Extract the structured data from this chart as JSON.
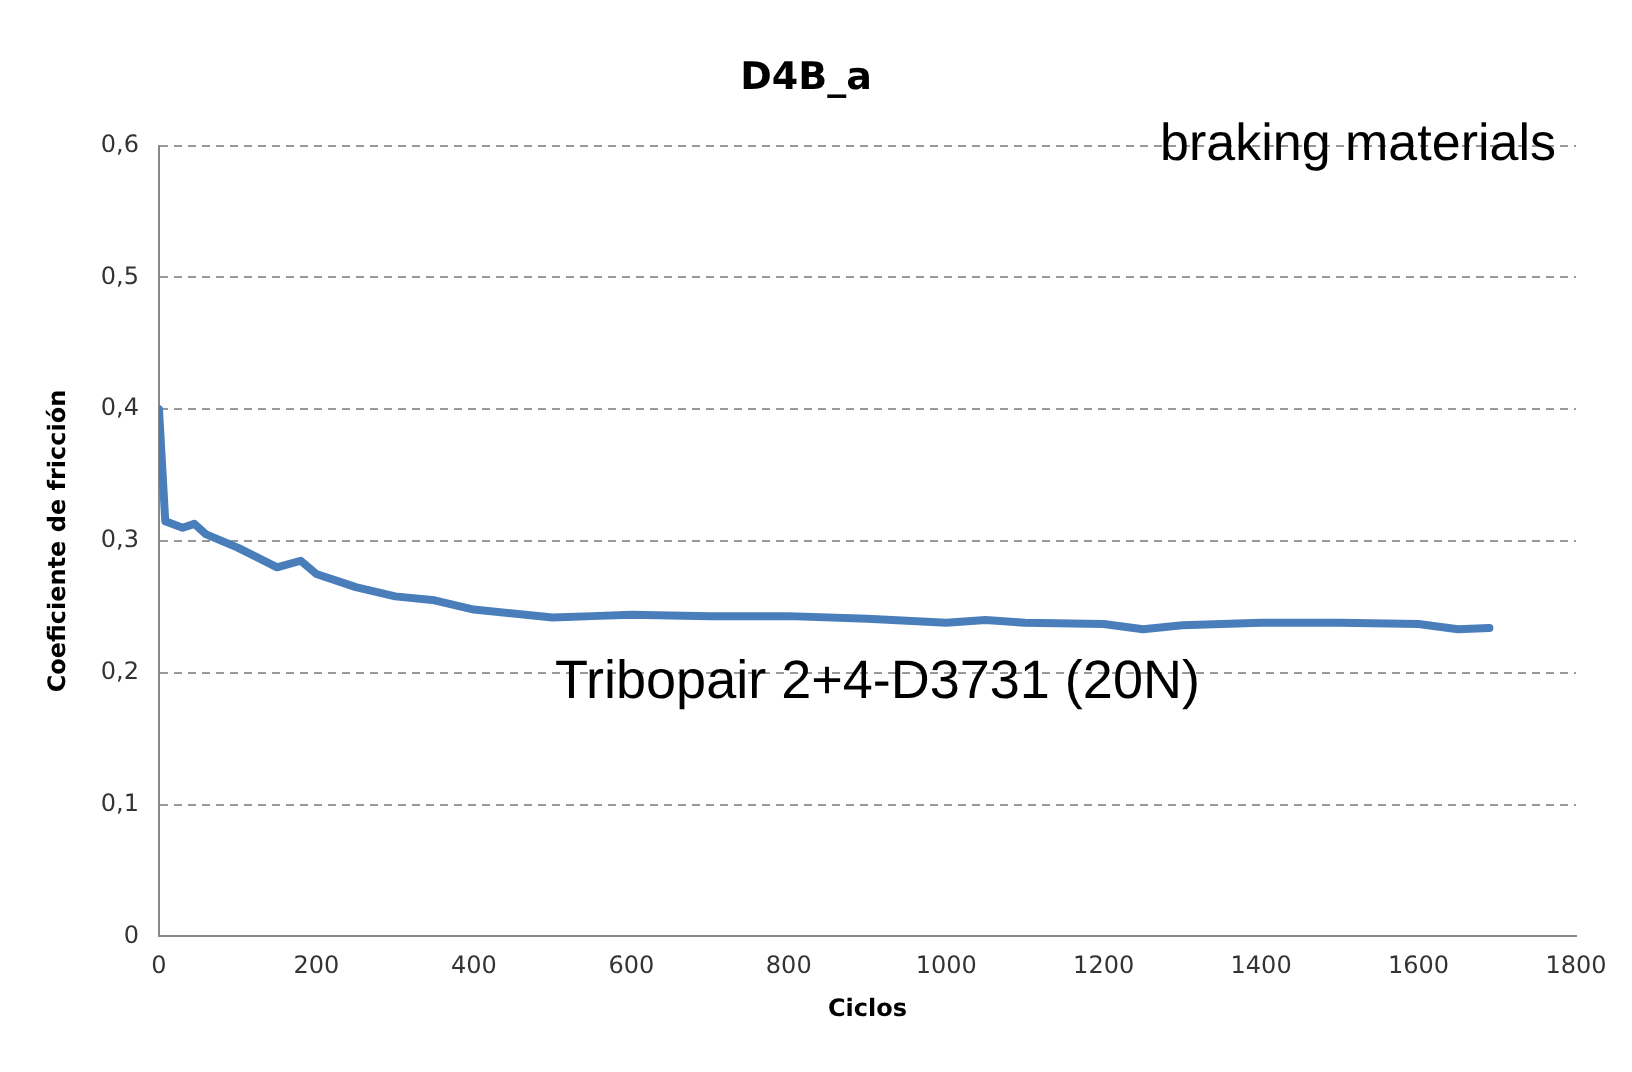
{
  "chart_data": {
    "type": "line",
    "title": "D4B_a",
    "xlabel": "Ciclos",
    "ylabel": "Coeficiente de fricción",
    "annotations": [
      "braking materials",
      "Tribopair 2+4-D3731 (20N)"
    ],
    "series": [
      {
        "color": "#4a7ebb",
        "x": [
          0,
          8,
          30,
          45,
          60,
          100,
          150,
          180,
          200,
          250,
          300,
          350,
          400,
          450,
          500,
          550,
          600,
          700,
          800,
          900,
          1000,
          1050,
          1100,
          1200,
          1250,
          1300,
          1400,
          1500,
          1600,
          1650,
          1690
        ],
        "values": [
          0.4,
          0.315,
          0.31,
          0.313,
          0.305,
          0.295,
          0.28,
          0.285,
          0.275,
          0.265,
          0.258,
          0.255,
          0.248,
          0.245,
          0.242,
          0.243,
          0.244,
          0.243,
          0.243,
          0.241,
          0.238,
          0.24,
          0.238,
          0.237,
          0.233,
          0.236,
          0.238,
          0.238,
          0.237,
          0.233,
          0.234
        ]
      }
    ],
    "xlim": [
      0,
      1800
    ],
    "xticks": [
      0,
      200,
      400,
      600,
      800,
      1000,
      1200,
      1400,
      1600,
      1800
    ],
    "ylim": [
      0,
      0.6
    ],
    "yticks": [
      {
        "value": 0,
        "label": "0"
      },
      {
        "value": 0.1,
        "label": "0,1"
      },
      {
        "value": 0.2,
        "label": "0,2"
      },
      {
        "value": 0.3,
        "label": "0,3"
      },
      {
        "value": 0.4,
        "label": "0,4"
      },
      {
        "value": 0.5,
        "label": "0,5"
      },
      {
        "value": 0.6,
        "label": "0,6"
      }
    ],
    "grid": "y",
    "legend": false,
    "marker": "none",
    "line_style": "solid"
  }
}
